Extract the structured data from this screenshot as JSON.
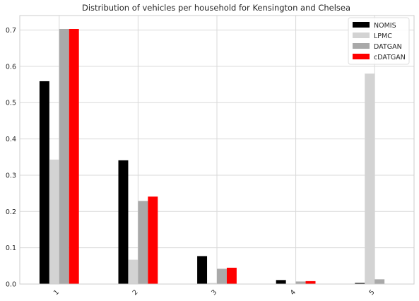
{
  "chart_data": {
    "type": "bar",
    "title": "Distribution of vehicles per household for Kensington and Chelsea",
    "xlabel": "",
    "ylabel": "",
    "categories": [
      "1",
      "2",
      "3",
      "4",
      "5"
    ],
    "ylim": [
      0,
      0.74
    ],
    "yticks": [
      "0.0",
      "0.1",
      "0.2",
      "0.3",
      "0.4",
      "0.5",
      "0.6",
      "0.7"
    ],
    "grid": true,
    "legend_position": "top-right",
    "series": [
      {
        "name": "NOMIS",
        "color": "#000000",
        "values": [
          0.559,
          0.341,
          0.077,
          0.011,
          0.003
        ]
      },
      {
        "name": "LPMC",
        "color": "#d3d3d3",
        "values": [
          0.343,
          0.067,
          0.003,
          0.0,
          0.58
        ]
      },
      {
        "name": "DATGAN",
        "color": "#a9a9a9",
        "values": [
          0.703,
          0.229,
          0.042,
          0.007,
          0.013
        ]
      },
      {
        "name": "cDATGAN",
        "color": "#ff0000",
        "values": [
          0.703,
          0.241,
          0.045,
          0.008,
          0.0
        ]
      }
    ]
  }
}
